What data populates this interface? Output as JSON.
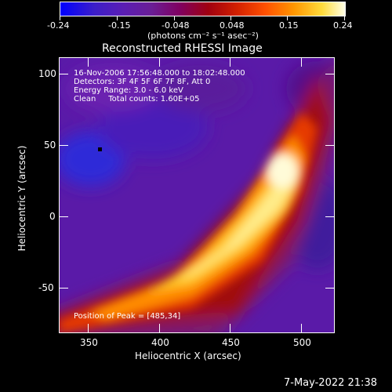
{
  "colorbar": {
    "tick_labels": [
      "-0.24",
      "-0.15",
      "-0.048",
      "0.048",
      "0.15",
      "0.24"
    ],
    "units_label": "(photons cm⁻² s⁻¹ asec⁻²)"
  },
  "plot": {
    "title": "Reconstructed RHESSI Image",
    "xlabel": "Heliocentric X (arcsec)",
    "ylabel": "Heliocentric Y (arcsec)",
    "x_ticks": [
      "350",
      "400",
      "450",
      "500"
    ],
    "y_ticks": [
      "100",
      "50",
      "0",
      "-50"
    ],
    "annotations": {
      "line1": "16-Nov-2006 17:56:48.000 to 18:02:48.000",
      "line2": "Detectors: 3F 4F 5F 6F 7F 8F, Att 0",
      "line3": "Energy Range: 3.0 - 6.0 keV",
      "line4": "Clean     Total counts: 1.60E+05",
      "peak": "Position of Peak = [485,34]"
    }
  },
  "timestamp": "7-May-2022 21:38"
}
